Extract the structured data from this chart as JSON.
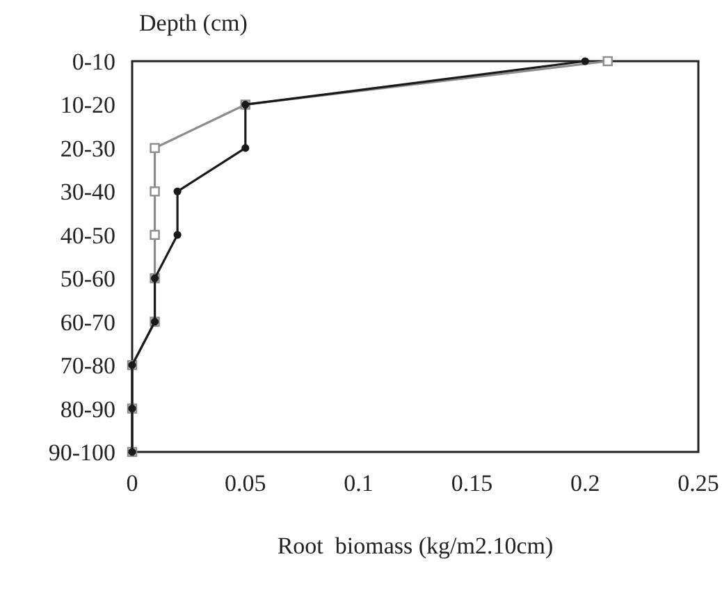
{
  "chart_data": {
    "type": "line",
    "orientation": "horizontal",
    "ylabel": "Depth (cm)",
    "xlabel": "Root  biomass (kg/m2.10cm)",
    "categories": [
      "0-10",
      "10-20",
      "20-30",
      "30-40",
      "40-50",
      "50-60",
      "60-70",
      "70-80",
      "80-90",
      "90-100"
    ],
    "xlim": [
      0,
      0.25
    ],
    "xticks": [
      0,
      0.05,
      0.1,
      0.15,
      0.2,
      0.25
    ],
    "grid": false,
    "series": [
      {
        "color": "#8c8c8c",
        "marker": "square",
        "values": [
          0.21,
          0.05,
          0.01,
          0.01,
          0.01,
          0.01,
          0.01,
          0,
          0,
          0
        ]
      },
      {
        "color": "#1a1a1a",
        "marker": "circle",
        "values": [
          0.2,
          0.05,
          0.05,
          0.02,
          0.02,
          0.01,
          0.01,
          0,
          0,
          0
        ]
      }
    ]
  }
}
